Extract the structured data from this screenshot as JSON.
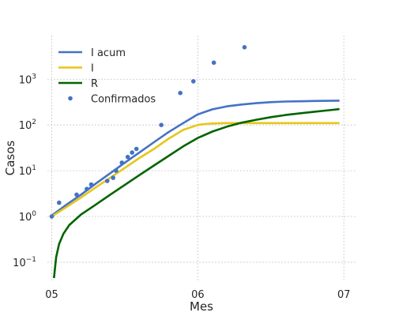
{
  "chart_data": {
    "type": "line",
    "title": "",
    "xlabel": "Mes",
    "ylabel": "Casos",
    "yscale": "log",
    "xlim": [
      4.97,
      7.08
    ],
    "ylim": [
      0.04,
      9000
    ],
    "grid": true,
    "legend_position": "upper-left",
    "x_ticks": [
      {
        "value": 5,
        "label": "05"
      },
      {
        "value": 6,
        "label": "06"
      },
      {
        "value": 7,
        "label": "07"
      }
    ],
    "y_ticks": [
      {
        "value": 0.1,
        "base": "10",
        "exp": "−1"
      },
      {
        "value": 1,
        "base": "10",
        "exp": "0"
      },
      {
        "value": 10,
        "base": "10",
        "exp": "1"
      },
      {
        "value": 100,
        "base": "10",
        "exp": "2"
      },
      {
        "value": 1000,
        "base": "10",
        "exp": "3"
      }
    ],
    "series": [
      {
        "name": "I acum",
        "kind": "line",
        "color": "#4472c4",
        "points": [
          [
            5.0,
            1.05
          ],
          [
            5.1,
            1.8
          ],
          [
            5.2,
            3.0
          ],
          [
            5.3,
            5.2
          ],
          [
            5.4,
            8.8
          ],
          [
            5.5,
            15
          ],
          [
            5.6,
            25
          ],
          [
            5.7,
            42
          ],
          [
            5.8,
            70
          ],
          [
            5.9,
            110
          ],
          [
            6.0,
            170
          ],
          [
            6.1,
            220
          ],
          [
            6.2,
            255
          ],
          [
            6.3,
            280
          ],
          [
            6.4,
            300
          ],
          [
            6.5,
            315
          ],
          [
            6.6,
            325
          ],
          [
            6.7,
            330
          ],
          [
            6.8,
            335
          ],
          [
            6.9,
            338
          ],
          [
            6.97,
            340
          ]
        ]
      },
      {
        "name": "I",
        "kind": "line",
        "color": "#e6c619",
        "points": [
          [
            5.0,
            1.0
          ],
          [
            5.1,
            1.6
          ],
          [
            5.2,
            2.6
          ],
          [
            5.3,
            4.3
          ],
          [
            5.4,
            7.0
          ],
          [
            5.5,
            11.5
          ],
          [
            5.6,
            19
          ],
          [
            5.7,
            30
          ],
          [
            5.8,
            50
          ],
          [
            5.9,
            78
          ],
          [
            6.0,
            100
          ],
          [
            6.05,
            105
          ],
          [
            6.1,
            108
          ],
          [
            6.2,
            110
          ],
          [
            6.4,
            110
          ],
          [
            6.6,
            110
          ],
          [
            6.8,
            110
          ],
          [
            6.97,
            110
          ]
        ]
      },
      {
        "name": "R",
        "kind": "line",
        "color": "#006400",
        "points": [
          [
            5.015,
            0.045
          ],
          [
            5.03,
            0.13
          ],
          [
            5.05,
            0.25
          ],
          [
            5.08,
            0.42
          ],
          [
            5.12,
            0.65
          ],
          [
            5.2,
            1.1
          ],
          [
            5.3,
            1.8
          ],
          [
            5.4,
            3.0
          ],
          [
            5.5,
            4.9
          ],
          [
            5.6,
            8.0
          ],
          [
            5.7,
            13
          ],
          [
            5.8,
            21
          ],
          [
            5.9,
            34
          ],
          [
            6.0,
            52
          ],
          [
            6.1,
            72
          ],
          [
            6.2,
            92
          ],
          [
            6.3,
            112
          ],
          [
            6.4,
            130
          ],
          [
            6.5,
            148
          ],
          [
            6.6,
            165
          ],
          [
            6.7,
            180
          ],
          [
            6.8,
            195
          ],
          [
            6.9,
            210
          ],
          [
            6.97,
            222
          ]
        ]
      },
      {
        "name": "Confirmados",
        "kind": "scatter",
        "color": "#4472c4",
        "points": [
          [
            5.0,
            1
          ],
          [
            5.05,
            2
          ],
          [
            5.17,
            3
          ],
          [
            5.24,
            4
          ],
          [
            5.27,
            5
          ],
          [
            5.38,
            6
          ],
          [
            5.42,
            7
          ],
          [
            5.44,
            10
          ],
          [
            5.48,
            15
          ],
          [
            5.52,
            20
          ],
          [
            5.55,
            25
          ],
          [
            5.58,
            30
          ],
          [
            5.75,
            100
          ],
          [
            5.88,
            500
          ],
          [
            5.97,
            900
          ],
          [
            6.11,
            2300
          ],
          [
            6.32,
            5000
          ]
        ]
      }
    ]
  }
}
